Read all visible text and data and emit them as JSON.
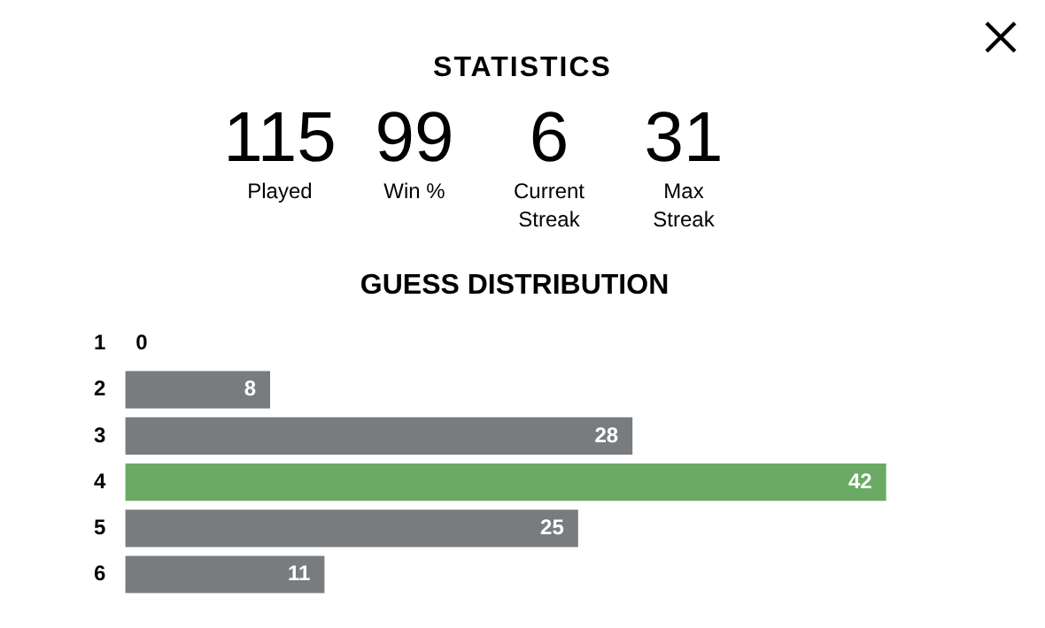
{
  "chart_data": [
    {
      "type": "other",
      "title": "STATISTICS",
      "annotations": [
        "115",
        "Played",
        "99",
        "Win %",
        "6",
        "Current Streak",
        "31",
        "Max Streak"
      ]
    },
    {
      "type": "bar",
      "title": "GUESS DISTRIBUTION",
      "orientation": "horizontal",
      "categories": [
        "1",
        "2",
        "3",
        "4",
        "5",
        "6"
      ],
      "values": [
        0,
        8,
        28,
        42,
        25,
        11
      ],
      "colors": [
        "#787c7e",
        "#787c7e",
        "#787c7e",
        "#6aaa64",
        "#787c7e",
        "#787c7e"
      ],
      "data_labels": true,
      "legend": false,
      "tick_labels": "y"
    }
  ]
}
